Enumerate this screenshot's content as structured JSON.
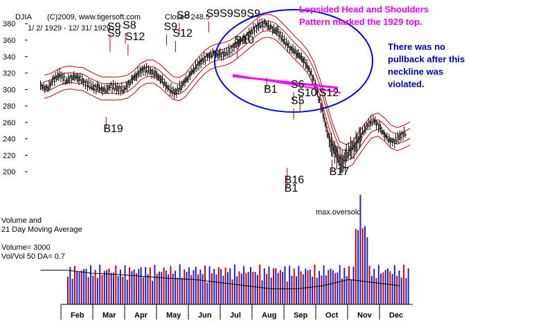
{
  "header": {
    "symbol": "DJIA",
    "copyright": "(C)2009, www.tigersoft.com",
    "close": "Close=   248.5",
    "date_range": "1/ 2/ 1929 - 12/ 31/ 1929"
  },
  "annotations": {
    "title_line1": "Lopsided Head and Shoulders",
    "title_line2": "Pattern marked the 1929 top.",
    "note_line1": "There was no",
    "note_line2": "pullback after this",
    "note_line3": "neckline was",
    "note_line4": "violated.",
    "max_oversold": "max.oversold"
  },
  "volume_panel": {
    "label_line1": "Volume and",
    "label_line2": "21 Day Moving Average",
    "volume": "Volume= 3000",
    "ratio": "Vol/Vol 50 DA= 0.7"
  },
  "colors": {
    "price": "#000000",
    "bands": "#cc0000",
    "neckline": "#ff00ff",
    "circle": "#0000ff",
    "volume_red": "#dd0000",
    "volume_blue": "#2222cc"
  },
  "chart_data": {
    "type": "line",
    "y_ticks": [
      200,
      220,
      240,
      260,
      280,
      300,
      320,
      340,
      360,
      380
    ],
    "ylim": [
      190,
      390
    ],
    "months": [
      "Feb",
      "Mar",
      "Apr",
      "May",
      "Jun",
      "Jul",
      "Aug",
      "Sep",
      "Oct",
      "Nov",
      "Dec"
    ],
    "price": [
      [
        1.0,
        305
      ],
      [
        1.5,
        300
      ],
      [
        2.0,
        312
      ],
      [
        2.5,
        318
      ],
      [
        3.0,
        310
      ],
      [
        3.5,
        316
      ],
      [
        4.0,
        314
      ],
      [
        4.5,
        308
      ],
      [
        5.0,
        303
      ],
      [
        5.5,
        302
      ],
      [
        6.0,
        298
      ],
      [
        6.5,
        304
      ],
      [
        7.0,
        301
      ],
      [
        7.5,
        300
      ],
      [
        8.0,
        310
      ],
      [
        8.5,
        318
      ],
      [
        9.0,
        325
      ],
      [
        9.5,
        322
      ],
      [
        10.0,
        318
      ],
      [
        10.5,
        310
      ],
      [
        11.0,
        300
      ],
      [
        11.5,
        296
      ],
      [
        12.0,
        305
      ],
      [
        12.5,
        315
      ],
      [
        13.0,
        326
      ],
      [
        13.5,
        334
      ],
      [
        14.0,
        340
      ],
      [
        14.5,
        343
      ],
      [
        15.0,
        342
      ],
      [
        15.5,
        344
      ],
      [
        16.0,
        352
      ],
      [
        16.5,
        358
      ],
      [
        17.0,
        364
      ],
      [
        17.5,
        372
      ],
      [
        18.0,
        378
      ],
      [
        18.5,
        380
      ],
      [
        19.0,
        374
      ],
      [
        19.5,
        370
      ],
      [
        20.0,
        358
      ],
      [
        20.5,
        350
      ],
      [
        21.0,
        344
      ],
      [
        21.5,
        336
      ],
      [
        22.0,
        322
      ],
      [
        22.5,
        300
      ],
      [
        23.0,
        270
      ],
      [
        23.5,
        236
      ],
      [
        24.0,
        222
      ],
      [
        24.5,
        210
      ],
      [
        25.0,
        225
      ],
      [
        25.5,
        232
      ],
      [
        26.0,
        245
      ],
      [
        26.5,
        258
      ],
      [
        27.0,
        262
      ],
      [
        27.5,
        252
      ],
      [
        28.0,
        240
      ],
      [
        28.5,
        236
      ],
      [
        29.0,
        243
      ],
      [
        29.5,
        248.5
      ]
    ],
    "signals": [
      {
        "label": "S9",
        "x": 6.2,
        "y": 364
      },
      {
        "label": "S9",
        "x": 6.2,
        "y": 372
      },
      {
        "label": "S8",
        "x": 7.4,
        "y": 374
      },
      {
        "label": "S12",
        "x": 7.6,
        "y": 360
      },
      {
        "label": "S9",
        "x": 10.6,
        "y": 372
      },
      {
        "label": "S12",
        "x": 11.3,
        "y": 364
      },
      {
        "label": "S8",
        "x": 11.6,
        "y": 386
      },
      {
        "label": "S9S9S9S9",
        "x": 13.9,
        "y": 388
      },
      {
        "label": "S10",
        "x": 16.1,
        "y": 356
      },
      {
        "label": "B1",
        "x": 18.4,
        "y": 296
      },
      {
        "label": "S6",
        "x": 20.5,
        "y": 302
      },
      {
        "label": "S10",
        "x": 21.0,
        "y": 292
      },
      {
        "label": "S5",
        "x": 20.5,
        "y": 282
      },
      {
        "label": "S12",
        "x": 22.7,
        "y": 292
      },
      {
        "label": "B19",
        "x": 5.9,
        "y": 248
      },
      {
        "label": "B16",
        "x": 20.0,
        "y": 186
      },
      {
        "label": "B1",
        "x": 20.0,
        "y": 176
      },
      {
        "label": "B17",
        "x": 23.5,
        "y": 196
      }
    ],
    "volume_ma": [
      [
        0,
        0.55
      ],
      [
        2,
        0.55
      ],
      [
        4,
        0.5
      ],
      [
        6,
        0.48
      ],
      [
        8,
        0.45
      ],
      [
        10,
        0.42
      ],
      [
        12,
        0.4
      ],
      [
        14,
        0.35
      ],
      [
        16,
        0.3
      ],
      [
        18,
        0.25
      ],
      [
        20,
        0.25
      ],
      [
        22,
        0.3
      ],
      [
        24,
        0.4
      ],
      [
        26,
        0.35
      ],
      [
        28,
        0.3
      ]
    ]
  }
}
